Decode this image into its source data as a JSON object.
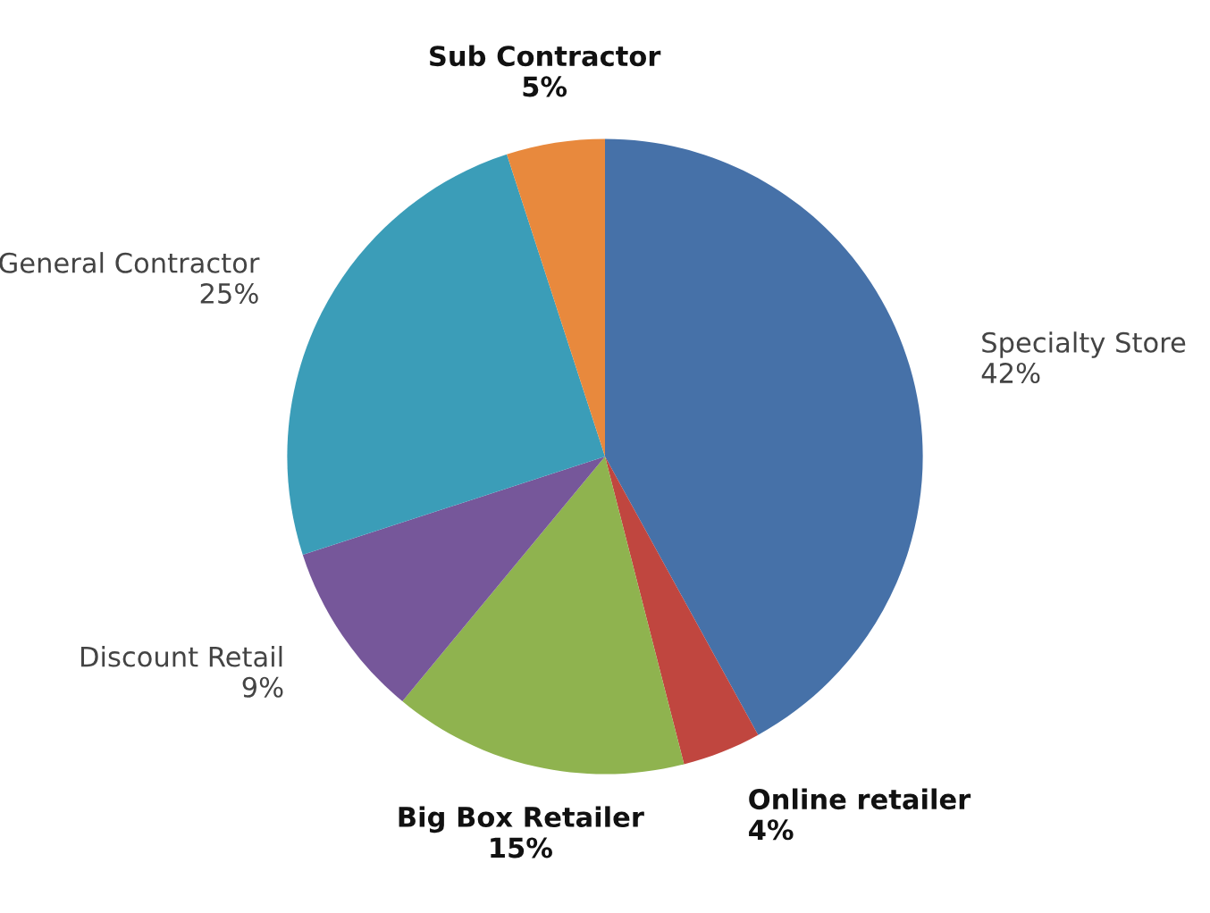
{
  "chart_data": {
    "type": "pie",
    "categories": [
      "Specialty Store",
      "Online retailer",
      "Big Box Retailer",
      "Discount Retail",
      "General Contractor",
      "Sub Contractor"
    ],
    "values": [
      42,
      4,
      15,
      9,
      25,
      5
    ],
    "value_labels": [
      "42%",
      "4%",
      "15%",
      "9%",
      "25%",
      "5%"
    ],
    "colors": [
      "#4671a8",
      "#c0463f",
      "#8fb34f",
      "#76579a",
      "#3b9db8",
      "#e8893d"
    ]
  }
}
